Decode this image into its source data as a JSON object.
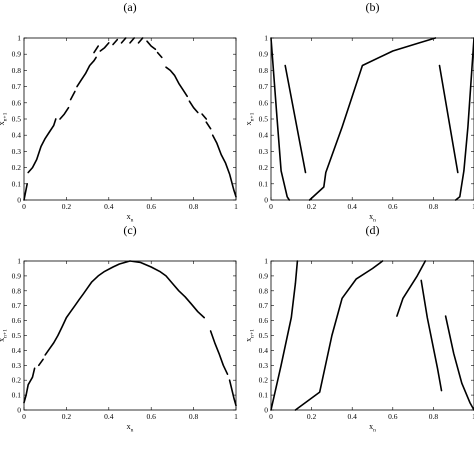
{
  "chart_data": [
    {
      "panel_label": "(a)",
      "type": "line",
      "xlabel": "x_n",
      "ylabel": "x_{n+1}",
      "xlim": [
        0,
        1
      ],
      "ylim": [
        0,
        1
      ],
      "xticks": [
        "0",
        "0.2",
        "0.4",
        "0.6",
        "0.8",
        "1"
      ],
      "yticks": [
        "0",
        "0.1",
        "0.2",
        "0.3",
        "0.4",
        "0.5",
        "0.6",
        "0.7",
        "0.8",
        "0.9",
        "1"
      ],
      "series": [
        {
          "points": [
            [
              0.0,
              0.0
            ],
            [
              0.015,
              0.1
            ]
          ]
        },
        {
          "points": [
            [
              0.02,
              0.17
            ],
            [
              0.04,
              0.2
            ],
            [
              0.06,
              0.25
            ],
            [
              0.08,
              0.33
            ],
            [
              0.1,
              0.38
            ],
            [
              0.12,
              0.42
            ],
            [
              0.14,
              0.46
            ],
            [
              0.15,
              0.5
            ]
          ]
        },
        {
          "points": [
            [
              0.17,
              0.5
            ],
            [
              0.19,
              0.53
            ],
            [
              0.21,
              0.57
            ]
          ]
        },
        {
          "points": [
            [
              0.22,
              0.62
            ],
            [
              0.24,
              0.67
            ]
          ]
        },
        {
          "points": [
            [
              0.25,
              0.7
            ],
            [
              0.27,
              0.74
            ],
            [
              0.29,
              0.78
            ],
            [
              0.31,
              0.83
            ],
            [
              0.33,
              0.86
            ],
            [
              0.34,
              0.88
            ]
          ]
        },
        {
          "points": [
            [
              0.33,
              0.91
            ],
            [
              0.35,
              0.95
            ]
          ]
        },
        {
          "points": [
            [
              0.36,
              0.92
            ],
            [
              0.38,
              0.94
            ],
            [
              0.4,
              0.97
            ]
          ]
        },
        {
          "points": [
            [
              0.42,
              0.96
            ],
            [
              0.44,
              0.99
            ]
          ]
        },
        {
          "points": [
            [
              0.46,
              0.97
            ],
            [
              0.48,
              1.0
            ]
          ]
        },
        {
          "points": [
            [
              0.5,
              0.97
            ],
            [
              0.52,
              1.0
            ]
          ]
        },
        {
          "points": [
            [
              0.54,
              0.97
            ],
            [
              0.56,
              1.0
            ]
          ]
        },
        {
          "points": [
            [
              0.58,
              0.98
            ],
            [
              0.6,
              0.95
            ],
            [
              0.62,
              0.93
            ]
          ]
        },
        {
          "points": [
            [
              0.63,
              0.91
            ],
            [
              0.65,
              0.88
            ]
          ]
        },
        {
          "points": [
            [
              0.67,
              0.82
            ],
            [
              0.69,
              0.8
            ],
            [
              0.71,
              0.77
            ],
            [
              0.73,
              0.72
            ],
            [
              0.75,
              0.68
            ],
            [
              0.77,
              0.64
            ]
          ]
        },
        {
          "points": [
            [
              0.78,
              0.61
            ],
            [
              0.8,
              0.57
            ],
            [
              0.82,
              0.54
            ]
          ]
        },
        {
          "points": [
            [
              0.84,
              0.53
            ],
            [
              0.86,
              0.5
            ]
          ]
        },
        {
          "points": [
            [
              0.86,
              0.48
            ],
            [
              0.88,
              0.44
            ]
          ]
        },
        {
          "points": [
            [
              0.89,
              0.4
            ],
            [
              0.91,
              0.35
            ],
            [
              0.93,
              0.28
            ],
            [
              0.95,
              0.23
            ],
            [
              0.97,
              0.16
            ],
            [
              0.99,
              0.06
            ],
            [
              1.0,
              0.02
            ]
          ]
        }
      ]
    },
    {
      "panel_label": "(b)",
      "type": "line",
      "xlabel": "x_n",
      "ylabel": "x_{n+1}",
      "xlim": [
        0,
        1
      ],
      "ylim": [
        0,
        1
      ],
      "xticks": [
        "0",
        "0.2",
        "0.4",
        "0.6",
        "0.8",
        "1"
      ],
      "yticks": [
        "0",
        "0.1",
        "0.2",
        "0.3",
        "0.4",
        "0.5",
        "0.6",
        "0.7",
        "0.8",
        "0.9",
        "1"
      ],
      "series": [
        {
          "points": [
            [
              0.0,
              1.0
            ],
            [
              0.03,
              0.5
            ],
            [
              0.05,
              0.18
            ],
            [
              0.08,
              0.02
            ],
            [
              0.09,
              0.0
            ]
          ]
        },
        {
          "points": [
            [
              0.07,
              0.83
            ],
            [
              0.17,
              0.17
            ]
          ]
        },
        {
          "points": [
            [
              0.19,
              0.0
            ],
            [
              0.26,
              0.08
            ],
            [
              0.27,
              0.17
            ],
            [
              0.35,
              0.45
            ],
            [
              0.45,
              0.83
            ],
            [
              0.6,
              0.92
            ],
            [
              0.73,
              0.97
            ],
            [
              0.81,
              1.0
            ]
          ]
        },
        {
          "points": [
            [
              0.83,
              0.83
            ],
            [
              0.92,
              0.17
            ]
          ]
        },
        {
          "points": [
            [
              0.91,
              0.0
            ],
            [
              0.93,
              0.02
            ],
            [
              0.95,
              0.18
            ],
            [
              0.97,
              0.45
            ],
            [
              1.0,
              1.0
            ]
          ]
        }
      ]
    },
    {
      "panel_label": "(c)",
      "type": "line",
      "xlabel": "x_n",
      "ylabel": "x_{n+1}",
      "xlim": [
        0,
        1
      ],
      "ylim": [
        0,
        1
      ],
      "xticks": [
        "0",
        "0.2",
        "0.4",
        "0.6",
        "0.8",
        "1"
      ],
      "yticks": [
        "0",
        "0.1",
        "0.2",
        "0.3",
        "0.4",
        "0.5",
        "0.6",
        "0.7",
        "0.8",
        "0.9",
        "1"
      ],
      "series": [
        {
          "points": [
            [
              0.0,
              0.05
            ],
            [
              0.01,
              0.1
            ],
            [
              0.02,
              0.17
            ],
            [
              0.04,
              0.22
            ],
            [
              0.05,
              0.28
            ]
          ]
        },
        {
          "points": [
            [
              0.07,
              0.3
            ],
            [
              0.09,
              0.34
            ]
          ]
        },
        {
          "points": [
            [
              0.1,
              0.37
            ],
            [
              0.12,
              0.41
            ],
            [
              0.14,
              0.45
            ],
            [
              0.16,
              0.5
            ],
            [
              0.18,
              0.56
            ],
            [
              0.2,
              0.62
            ],
            [
              0.22,
              0.66
            ],
            [
              0.24,
              0.7
            ],
            [
              0.26,
              0.74
            ],
            [
              0.28,
              0.78
            ],
            [
              0.3,
              0.82
            ],
            [
              0.32,
              0.86
            ],
            [
              0.35,
              0.9
            ],
            [
              0.38,
              0.93
            ],
            [
              0.42,
              0.96
            ],
            [
              0.45,
              0.98
            ],
            [
              0.5,
              1.0
            ],
            [
              0.55,
              0.99
            ],
            [
              0.6,
              0.96
            ],
            [
              0.64,
              0.93
            ],
            [
              0.67,
              0.9
            ],
            [
              0.7,
              0.85
            ],
            [
              0.73,
              0.8
            ],
            [
              0.76,
              0.76
            ],
            [
              0.79,
              0.71
            ],
            [
              0.82,
              0.66
            ],
            [
              0.85,
              0.62
            ]
          ]
        },
        {
          "points": [
            [
              0.88,
              0.53
            ],
            [
              0.9,
              0.45
            ],
            [
              0.92,
              0.38
            ],
            [
              0.94,
              0.3
            ],
            [
              0.96,
              0.24
            ]
          ]
        },
        {
          "points": [
            [
              0.97,
              0.2
            ],
            [
              0.99,
              0.08
            ],
            [
              1.0,
              0.03
            ]
          ]
        }
      ]
    },
    {
      "panel_label": "(d)",
      "type": "line",
      "xlabel": "x_n",
      "ylabel": "x_{n+1}",
      "xlim": [
        0,
        1
      ],
      "ylim": [
        0,
        1
      ],
      "xticks": [
        "0",
        "0.2",
        "0.4",
        "0.6",
        "0.8",
        "1"
      ],
      "yticks": [
        "0",
        "0.1",
        "0.2",
        "0.3",
        "0.4",
        "0.5",
        "0.6",
        "0.7",
        "0.8",
        "0.9",
        "1"
      ],
      "series": [
        {
          "points": [
            [
              0.0,
              0.0
            ],
            [
              0.05,
              0.3
            ],
            [
              0.1,
              0.62
            ],
            [
              0.12,
              0.85
            ],
            [
              0.13,
              1.0
            ]
          ]
        },
        {
          "points": [
            [
              0.12,
              0.0
            ],
            [
              0.24,
              0.12
            ],
            [
              0.3,
              0.5
            ],
            [
              0.35,
              0.75
            ],
            [
              0.42,
              0.88
            ],
            [
              0.5,
              0.95
            ],
            [
              0.55,
              1.0
            ]
          ]
        },
        {
          "points": [
            [
              0.62,
              0.63
            ],
            [
              0.65,
              0.75
            ],
            [
              0.72,
              0.9
            ],
            [
              0.76,
              1.0
            ]
          ]
        },
        {
          "points": [
            [
              0.74,
              0.87
            ],
            [
              0.77,
              0.62
            ],
            [
              0.82,
              0.28
            ],
            [
              0.84,
              0.13
            ]
          ]
        },
        {
          "points": [
            [
              0.86,
              0.63
            ],
            [
              0.9,
              0.38
            ],
            [
              0.94,
              0.18
            ],
            [
              0.98,
              0.05
            ],
            [
              1.0,
              0.0
            ]
          ]
        }
      ]
    }
  ]
}
